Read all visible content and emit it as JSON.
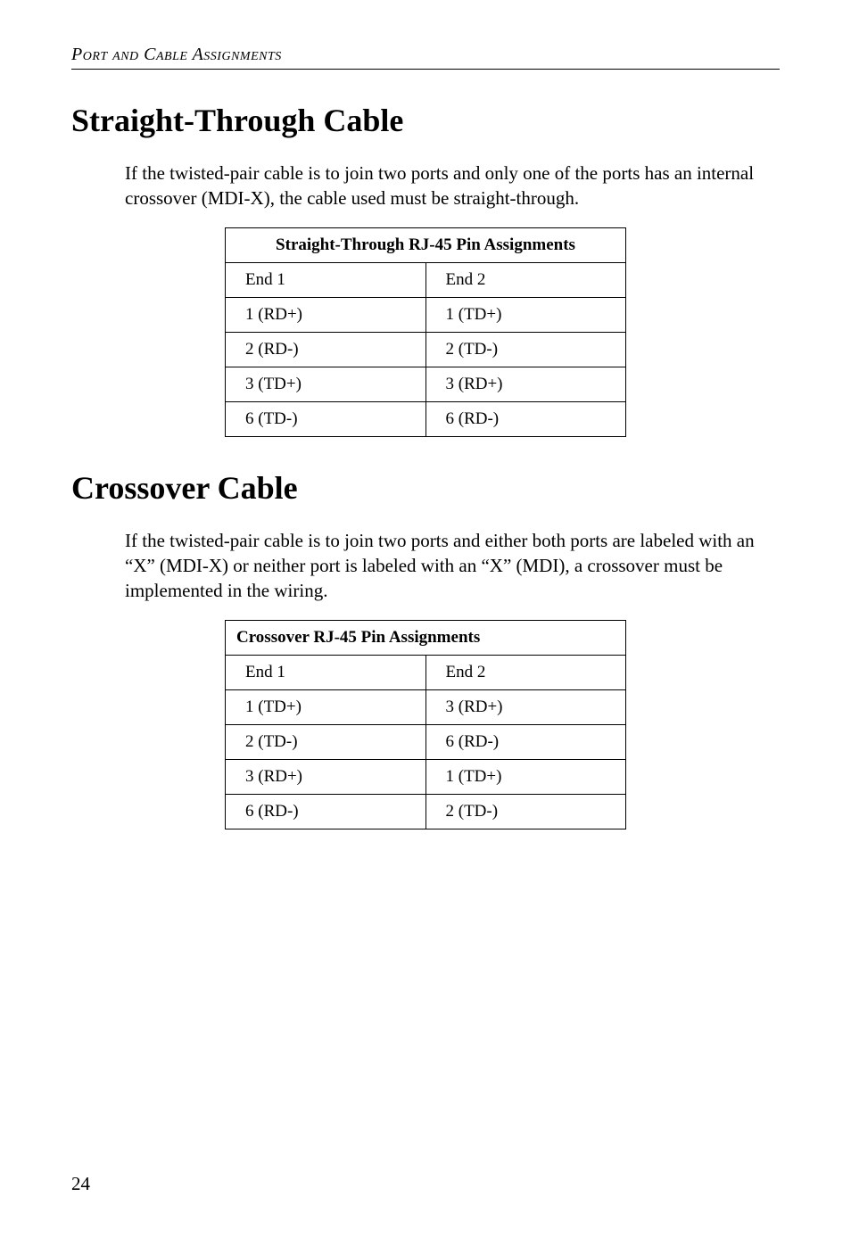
{
  "runningHeader": "Port and Cable Assignments",
  "section1": {
    "heading": "Straight-Through Cable",
    "paragraph": "If the twisted-pair cable is to join two ports and only one of the ports has an internal crossover (MDI-X), the cable used must be straight-through.",
    "tableTitle": "Straight-Through RJ-45 Pin Assignments",
    "headerRow": {
      "col1": "End 1",
      "col2": "End 2"
    },
    "rows": [
      {
        "col1": "1 (RD+)",
        "col2": "1 (TD+)"
      },
      {
        "col1": "2 (RD-)",
        "col2": "2 (TD-)"
      },
      {
        "col1": "3 (TD+)",
        "col2": "3 (RD+)"
      },
      {
        "col1": "6 (TD-)",
        "col2": "6 (RD-)"
      }
    ]
  },
  "section2": {
    "heading": "Crossover Cable",
    "paragraph": "If the twisted-pair cable is to join two ports and either both ports are labeled with an “X” (MDI-X) or neither port is labeled with an “X” (MDI), a crossover must be implemented in the wiring.",
    "tableTitle": "Crossover RJ-45 Pin Assignments",
    "headerRow": {
      "col1": "End 1",
      "col2": "End 2"
    },
    "rows": [
      {
        "col1": "1 (TD+)",
        "col2": "3 (RD+)"
      },
      {
        "col1": "2 (TD-)",
        "col2": "6 (RD-)"
      },
      {
        "col1": "3 (RD+)",
        "col2": "1 (TD+)"
      },
      {
        "col1": "6 (RD-)",
        "col2": "2 (TD-)"
      }
    ]
  },
  "pageNumber": "24"
}
